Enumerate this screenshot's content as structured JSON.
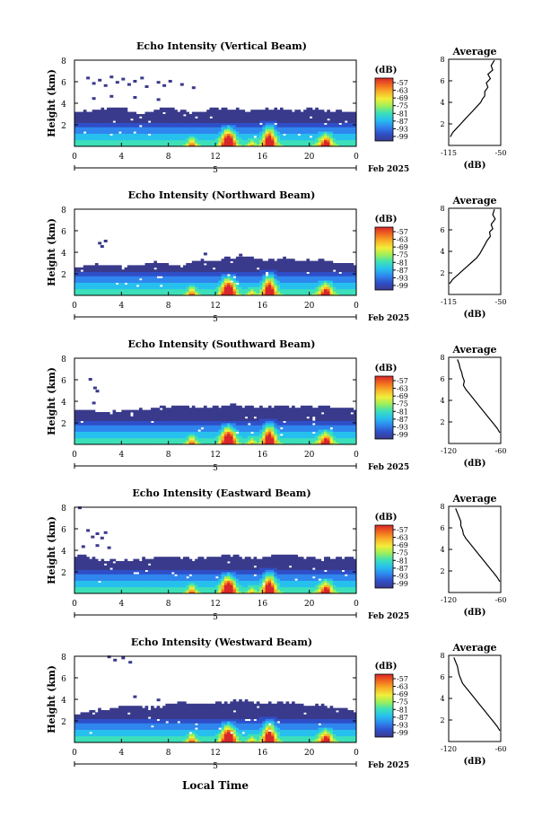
{
  "footer": {
    "xlabel": "Local Time"
  },
  "colorbar": {
    "unit": "(dB)",
    "ticks": [
      "-57",
      "-63",
      "-69",
      "-75",
      "-81",
      "-87",
      "-93",
      "-99"
    ],
    "colors": [
      "#3a3a8c",
      "#2f4fc8",
      "#2f86ee",
      "#27c0ee",
      "#3de0b8",
      "#9cef5a",
      "#f2ee3a",
      "#f8b228",
      "#f06a1e",
      "#d8262a"
    ]
  },
  "chart_data": [
    {
      "type": "heatmap",
      "title": "Echo Intensity (Vertical Beam)",
      "ylabel": "Height (km)",
      "yticks": [
        "8",
        "6",
        "4",
        "2"
      ],
      "ylim": [
        0,
        8
      ],
      "xticks": [
        "0",
        "4",
        "8",
        "12",
        "16",
        "20",
        "0"
      ],
      "xlim": [
        0,
        24
      ],
      "xlabel_under": "5",
      "date_label": "Feb 2025",
      "colorbar": "(dB)",
      "avg": {
        "title": "Average",
        "xticks": [
          "-115",
          "-50"
        ],
        "xlabel": "(dB)",
        "yticks": [
          "8",
          "6",
          "4",
          "2"
        ],
        "xlim": [
          -115,
          -50
        ]
      },
      "top_km": [
        3.1,
        3.3,
        3.4,
        3.5,
        3.6,
        3.2,
        3.0,
        3.4,
        3.7,
        3.3,
        3.1,
        3.3,
        3.5,
        3.6,
        3.4,
        3.3,
        3.5,
        3.6,
        3.4,
        3.3,
        3.5,
        3.4,
        3.3,
        3.2,
        3.3
      ],
      "floaters": [
        [
          1.0,
          6.3
        ],
        [
          1.5,
          5.8
        ],
        [
          2.0,
          6.1
        ],
        [
          2.5,
          5.6
        ],
        [
          3.0,
          6.4
        ],
        [
          3.5,
          5.9
        ],
        [
          4.0,
          6.2
        ],
        [
          4.5,
          5.7
        ],
        [
          5.0,
          6.0
        ],
        [
          5.6,
          6.3
        ],
        [
          6.0,
          5.5
        ],
        [
          7.0,
          5.9
        ],
        [
          7.5,
          5.6
        ],
        [
          8.0,
          6.0
        ],
        [
          9.0,
          5.7
        ],
        [
          10.0,
          5.4
        ],
        [
          1.5,
          4.4
        ],
        [
          3.0,
          4.6
        ],
        [
          5.0,
          4.5
        ],
        [
          7.0,
          4.3
        ]
      ],
      "profile": [
        [
          -58,
          7.9
        ],
        [
          -62,
          7.4
        ],
        [
          -60,
          7.0
        ],
        [
          -66,
          6.6
        ],
        [
          -63,
          6.2
        ],
        [
          -68,
          5.8
        ],
        [
          -66,
          5.4
        ],
        [
          -70,
          5.0
        ],
        [
          -70,
          4.6
        ],
        [
          -73,
          4.3
        ],
        [
          -75,
          4.0
        ],
        [
          -80,
          3.6
        ],
        [
          -85,
          3.2
        ],
        [
          -90,
          2.8
        ],
        [
          -95,
          2.4
        ],
        [
          -100,
          2.0
        ],
        [
          -105,
          1.6
        ],
        [
          -110,
          1.2
        ],
        [
          -113,
          0.8
        ]
      ]
    },
    {
      "type": "heatmap",
      "title": "Echo Intensity (Northward Beam)",
      "ylabel": "Height (km)",
      "yticks": [
        "8",
        "6",
        "4",
        "2"
      ],
      "ylim": [
        0,
        8
      ],
      "xticks": [
        "0",
        "4",
        "8",
        "12",
        "16",
        "20",
        "0"
      ],
      "xlim": [
        0,
        24
      ],
      "xlabel_under": "5",
      "date_label": "Feb 2025",
      "colorbar": "(dB)",
      "avg": {
        "title": "Average",
        "xticks": [
          "-115",
          "-50"
        ],
        "xlabel": "(dB)",
        "yticks": [
          "8",
          "6",
          "4",
          "2"
        ],
        "xlim": [
          -115,
          -50
        ]
      },
      "top_km": [
        2.6,
        2.7,
        2.9,
        2.8,
        2.6,
        2.8,
        3.0,
        3.1,
        2.9,
        2.8,
        3.1,
        3.2,
        3.3,
        3.4,
        3.6,
        3.5,
        3.3,
        3.4,
        3.5,
        3.2,
        3.3,
        3.4,
        3.1,
        3.0,
        2.9
      ],
      "floaters": [
        [
          2.0,
          4.8
        ],
        [
          2.2,
          4.5
        ],
        [
          2.5,
          5.0
        ],
        [
          11.0,
          3.8
        ],
        [
          14.0,
          3.7
        ]
      ],
      "profile": [
        [
          -58,
          7.9
        ],
        [
          -60,
          7.4
        ],
        [
          -57,
          7.0
        ],
        [
          -62,
          6.5
        ],
        [
          -60,
          6.1
        ],
        [
          -64,
          5.8
        ],
        [
          -63,
          5.4
        ],
        [
          -67,
          5.0
        ],
        [
          -70,
          4.6
        ],
        [
          -73,
          4.2
        ],
        [
          -76,
          3.8
        ],
        [
          -80,
          3.4
        ],
        [
          -86,
          3.0
        ],
        [
          -92,
          2.6
        ],
        [
          -98,
          2.2
        ],
        [
          -104,
          1.8
        ],
        [
          -110,
          1.4
        ],
        [
          -114,
          1.0
        ]
      ]
    },
    {
      "type": "heatmap",
      "title": "Echo Intensity (Southward Beam)",
      "ylabel": "Height (km)",
      "yticks": [
        "8",
        "6",
        "4",
        "2"
      ],
      "ylim": [
        0,
        8
      ],
      "xticks": [
        "0",
        "4",
        "8",
        "12",
        "16",
        "20",
        "0"
      ],
      "xlim": [
        0,
        24
      ],
      "xlabel_under": "5",
      "date_label": "Feb 2025",
      "colorbar": "(dB)",
      "avg": {
        "title": "Average",
        "xticks": [
          "-120",
          "-60"
        ],
        "xlabel": "(dB)",
        "yticks": [
          "8",
          "6",
          "4",
          "2"
        ],
        "xlim": [
          -120,
          -60
        ]
      },
      "top_km": [
        3.2,
        3.3,
        3.1,
        3.0,
        3.1,
        3.2,
        3.3,
        3.4,
        3.5,
        3.6,
        3.5,
        3.4,
        3.5,
        3.6,
        3.7,
        3.5,
        3.4,
        3.5,
        3.6,
        3.4,
        3.5,
        3.6,
        3.5,
        3.4,
        3.3
      ],
      "floaters": [
        [
          1.2,
          6.0
        ],
        [
          1.6,
          5.2
        ],
        [
          1.8,
          4.9
        ],
        [
          1.5,
          3.8
        ]
      ],
      "profile": [
        [
          -110,
          7.8
        ],
        [
          -108,
          7.4
        ],
        [
          -107,
          7.0
        ],
        [
          -105,
          6.6
        ],
        [
          -104,
          6.2
        ],
        [
          -102,
          5.8
        ],
        [
          -103,
          5.4
        ],
        [
          -100,
          5.0
        ],
        [
          -96,
          4.6
        ],
        [
          -92,
          4.2
        ],
        [
          -88,
          3.8
        ],
        [
          -84,
          3.4
        ],
        [
          -80,
          3.0
        ],
        [
          -76,
          2.6
        ],
        [
          -72,
          2.2
        ],
        [
          -68,
          1.8
        ],
        [
          -64,
          1.4
        ],
        [
          -61,
          1.0
        ]
      ]
    },
    {
      "type": "heatmap",
      "title": "Echo Intensity (Eastward Beam)",
      "ylabel": "Height (km)",
      "yticks": [
        "8",
        "6",
        "4",
        "2"
      ],
      "ylim": [
        0,
        8
      ],
      "xticks": [
        "0",
        "4",
        "8",
        "12",
        "16",
        "20",
        "0"
      ],
      "xlim": [
        0,
        24
      ],
      "xlabel_under": "5",
      "date_label": "Feb 2025",
      "colorbar": "(dB)",
      "avg": {
        "title": "Average",
        "xticks": [
          "-120",
          "-60"
        ],
        "xlabel": "(dB)",
        "yticks": [
          "8",
          "6",
          "4",
          "2"
        ],
        "xlim": [
          -120,
          -60
        ]
      },
      "top_km": [
        3.6,
        3.4,
        3.1,
        3.2,
        3.0,
        3.1,
        3.2,
        3.4,
        3.5,
        3.3,
        3.2,
        3.3,
        3.5,
        3.6,
        3.4,
        3.3,
        3.4,
        3.5,
        3.6,
        3.4,
        3.3,
        3.2,
        3.4,
        3.3,
        3.2
      ],
      "floaters": [
        [
          1.0,
          5.8
        ],
        [
          1.4,
          5.2
        ],
        [
          1.8,
          5.5
        ],
        [
          2.2,
          5.1
        ],
        [
          2.5,
          5.6
        ],
        [
          0.6,
          4.3
        ],
        [
          1.8,
          4.4
        ],
        [
          2.8,
          4.2
        ],
        [
          0.3,
          7.9
        ]
      ],
      "profile": [
        [
          -112,
          7.8
        ],
        [
          -110,
          7.4
        ],
        [
          -108,
          7.0
        ],
        [
          -106,
          6.6
        ],
        [
          -106,
          6.2
        ],
        [
          -104,
          5.8
        ],
        [
          -103,
          5.4
        ],
        [
          -100,
          5.0
        ],
        [
          -96,
          4.6
        ],
        [
          -92,
          4.2
        ],
        [
          -88,
          3.8
        ],
        [
          -84,
          3.4
        ],
        [
          -80,
          3.0
        ],
        [
          -76,
          2.6
        ],
        [
          -72,
          2.2
        ],
        [
          -68,
          1.8
        ],
        [
          -64,
          1.4
        ],
        [
          -61,
          1.0
        ]
      ]
    },
    {
      "type": "heatmap",
      "title": "Echo Intensity (Westward Beam)",
      "ylabel": "Height (km)",
      "yticks": [
        "8",
        "6",
        "4",
        "2"
      ],
      "ylim": [
        0,
        8
      ],
      "xticks": [
        "0",
        "4",
        "8",
        "12",
        "16",
        "20",
        "0"
      ],
      "xlim": [
        0,
        24
      ],
      "xlabel_under": "5",
      "date_label": "Feb 2025",
      "colorbar": "(dB)",
      "avg": {
        "title": "Average",
        "xticks": [
          "-120",
          "-60"
        ],
        "xlabel": "(dB)",
        "yticks": [
          "8",
          "6",
          "4",
          "2"
        ],
        "xlim": [
          -120,
          -60
        ]
      },
      "top_km": [
        2.6,
        2.8,
        3.0,
        3.2,
        3.4,
        3.5,
        3.3,
        3.4,
        3.6,
        3.8,
        3.7,
        3.5,
        3.7,
        3.8,
        3.9,
        3.8,
        3.6,
        3.7,
        3.8,
        3.6,
        3.4,
        3.5,
        3.3,
        3.1,
        2.9
      ],
      "floaters": [
        [
          2.8,
          7.9
        ],
        [
          3.3,
          7.6
        ],
        [
          4.0,
          7.8
        ],
        [
          4.6,
          7.4
        ],
        [
          5.0,
          4.2
        ],
        [
          7.0,
          3.9
        ]
      ],
      "profile": [
        [
          -114,
          7.8
        ],
        [
          -112,
          7.4
        ],
        [
          -110,
          7.0
        ],
        [
          -109,
          6.6
        ],
        [
          -108,
          6.2
        ],
        [
          -106,
          5.8
        ],
        [
          -104,
          5.4
        ],
        [
          -100,
          5.0
        ],
        [
          -96,
          4.6
        ],
        [
          -92,
          4.2
        ],
        [
          -88,
          3.8
        ],
        [
          -84,
          3.4
        ],
        [
          -80,
          3.0
        ],
        [
          -76,
          2.6
        ],
        [
          -72,
          2.2
        ],
        [
          -68,
          1.8
        ],
        [
          -64,
          1.4
        ],
        [
          -61,
          1.0
        ]
      ]
    }
  ]
}
